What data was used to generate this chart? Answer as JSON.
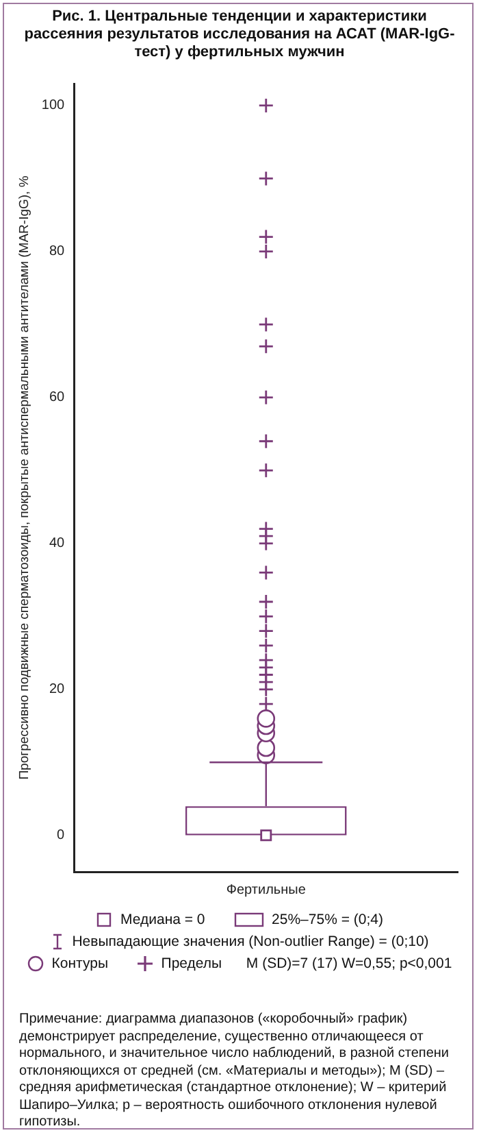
{
  "chart_data": {
    "type": "box",
    "title": "Рис. 1. Центральные тенденции и характеристики рассеяния результатов исследования на АСАТ (MAR-IgG-тест) у фертильных мужчин",
    "ylabel": "Прогрессивно подвижные сперматозоиды, покрытые антиспермальными антителами (MAR-IgG), %",
    "categories": [
      "Фертильные"
    ],
    "color": "#7a3a78",
    "boxes": [
      {
        "low": 0,
        "q1": 0,
        "median": 0,
        "q3": 4,
        "high": 10,
        "outliers": [
          11,
          12,
          14,
          15,
          16
        ]
      }
    ],
    "series": [
      {
        "type": "scatter",
        "name": "Медиана = 0",
        "color": "#7a3a78",
        "marker": "square",
        "x": [
          "Фертильные"
        ],
        "values": [
          0
        ]
      },
      {
        "type": "scatter",
        "name": "Пределы",
        "color": "#7a3a78",
        "marker": "cross",
        "x": [
          "Фертильные",
          "Фертильные",
          "Фертильные",
          "Фертильные",
          "Фертильные",
          "Фертильные",
          "Фертильные",
          "Фертильные",
          "Фертильные",
          "Фертильные",
          "Фертильные",
          "Фертильные",
          "Фертильные",
          "Фертильные",
          "Фертильные",
          "Фертильные",
          "Фертильные",
          "Фертильные",
          "Фертильные",
          "Фертильные",
          "Фертильные",
          "Фертильные",
          "Фертильные"
        ],
        "values": [
          18,
          20,
          21,
          22,
          23,
          24,
          26,
          28,
          30,
          32,
          36,
          40,
          41,
          42,
          50,
          54,
          60,
          67,
          70,
          80,
          82,
          90,
          100
        ]
      }
    ],
    "ylim": [
      -5,
      103
    ],
    "yticks": [
      0,
      20,
      40,
      60,
      80,
      100
    ],
    "grid": false,
    "legend": "bottom",
    "annotations": [
      "25%–75% = (0;4)",
      "Невыпадающие значения (Non-outlier Range) = (0;10)",
      "Контуры",
      "M (SD)=7 (17)  W=0,55; p<0,001",
      "Примечание: диаграмма диапазонов («коробочный» график) демонстрирует распределение, существенно отличающееся от нормального, и значительное число наблюдений, в разной степени отклоняющихся от средней (см. «Материалы и методы»); M (SD) – средняя арифметическая (стандартное отклонение); W – критерий Шапиро–Уилка; p – вероятность ошибочного отклонения нулевой гипотизы."
    ]
  }
}
